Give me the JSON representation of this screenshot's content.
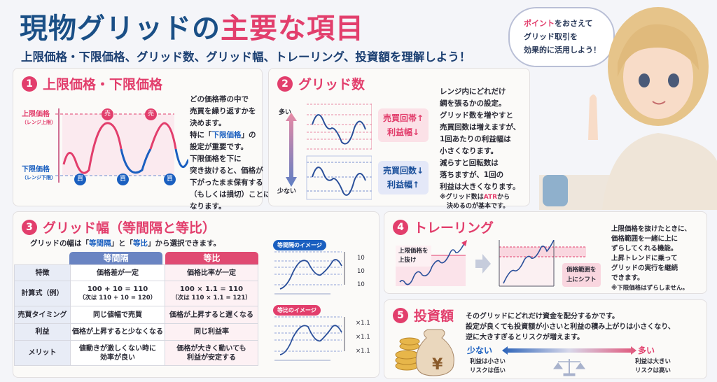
{
  "header": {
    "title_main": "現物グリッドの",
    "title_accent": "主要な項目",
    "subtitle": "上限価格・下限価格、グリッド数、グリッド幅、トレーリング、投資額を理解しよう！"
  },
  "bubble": {
    "accent": "ポイント",
    "line1_rest": "をおさえて",
    "line2": "グリッド取引を",
    "line3": "効果的に活用しよう！"
  },
  "s1": {
    "num": "1",
    "title": "上限価格・下限価格",
    "upper": "上限価格",
    "upper_sub": "（レンジ上限）",
    "lower": "下限価格",
    "lower_sub": "（レンジ下限）",
    "sell": "売",
    "buy": "買",
    "t1": "どの価格帯の中で",
    "t2": "売買を繰り返すかを",
    "t3": "決めます。",
    "t4a": "特に「",
    "t4b": "下限価格",
    "t4c": "」の",
    "t5": "設定が重要です。",
    "t6": "下限価格を下に",
    "t7": "突き抜けると、価格が",
    "t8": "下がったまま保有する",
    "t9": "（もしくは損切）ことに",
    "t10": "なります。"
  },
  "s2": {
    "num": "2",
    "title": "グリッド数",
    "many": "多い",
    "few": "少ない",
    "box1a": "売買回帯↑",
    "box1b": "利益幅↓",
    "box2a": "売買回数↓",
    "box2b": "利益幅↑",
    "t1": "レンジ内にどれだけ",
    "t2": "網を張るかの設定。",
    "t3": "グリッド数を増やすと",
    "t4": "売買回数は増えますが、",
    "t5": "1回あたりの利益幅は",
    "t6": "小さくなります。",
    "t7": "減らすと回転数は",
    "t8": "落ちますが、1回の",
    "t9": "利益は大きくなります。",
    "n1a": "※グリッド数は",
    "n1b": "ATR",
    "n1c": "から",
    "n2": "決めるのが基本です。"
  },
  "s3": {
    "num": "3",
    "title": "グリッド幅（等間隔と等比）",
    "lead_a": "グリッドの幅は「",
    "lead_b": "等間隔",
    "lead_c": "」と「",
    "lead_d": "等比",
    "lead_e": "」から選択できます。",
    "col_a": "等間隔",
    "col_b": "等比",
    "rows": [
      {
        "k": "特徴",
        "a": "価格差が一定",
        "a2": "",
        "b": "価格比率が一定",
        "b2": ""
      },
      {
        "k": "計算式（例）",
        "a": "100 + 10 = 110",
        "a2": "（次は 110 + 10 = 120）",
        "b": "100 × 1.1 = 110",
        "b2": "（次は 110 × 1.1 = 121）"
      },
      {
        "k": "売買タイミング",
        "a": "同じ値幅で売買",
        "a2": "",
        "b": "価格が上昇すると遅くなる",
        "b2": ""
      },
      {
        "k": "利益",
        "a": "価格が上昇すると少なくなる",
        "a2": "",
        "b": "同じ利益率",
        "b2": ""
      },
      {
        "k": "メリット",
        "a": "値動きが激しくない時に",
        "a2": "効率が良い",
        "b": "価格が大きく動いても",
        "b2": "利益が安定する"
      }
    ],
    "img_a": "等間隔のイメージ",
    "img_b": "等比のイメージ",
    "step_a": "10",
    "step_b": "×1.1"
  },
  "s4": {
    "num": "4",
    "title": "トレーリング",
    "label1a": "上限価格を",
    "label1b": "上抜け",
    "label2a": "価格範囲を",
    "label2b": "上にシフト",
    "t1": "上限価格を抜けたときに、",
    "t2": "価格範囲を一緒に上に",
    "t3": "ずらしてくれる機能。",
    "t4": "上昇トレンドに乗って",
    "t5": "グリッドの実行を継続",
    "t6": "できます。",
    "t7": "※下限価格はずらしません。"
  },
  "s5": {
    "num": "5",
    "title": "投資額",
    "t1": "そのグリッドにどれだけ資金を配分するかです。",
    "t2": "設定が良くても投資額が小さいと利益の積み上がりは小さくなり、",
    "t3": "逆に大きすぎるとリスクが増えます。",
    "few": "少ない",
    "many": "多い",
    "few1": "利益は小さい",
    "few2": "リスクは低い",
    "many1": "利益は大きい",
    "many2": "リスクは高い",
    "yen": "¥"
  },
  "colors": {
    "blue": "#1a4f86",
    "pink": "#e23e6c",
    "accent_blue": "#1a5fc0"
  }
}
